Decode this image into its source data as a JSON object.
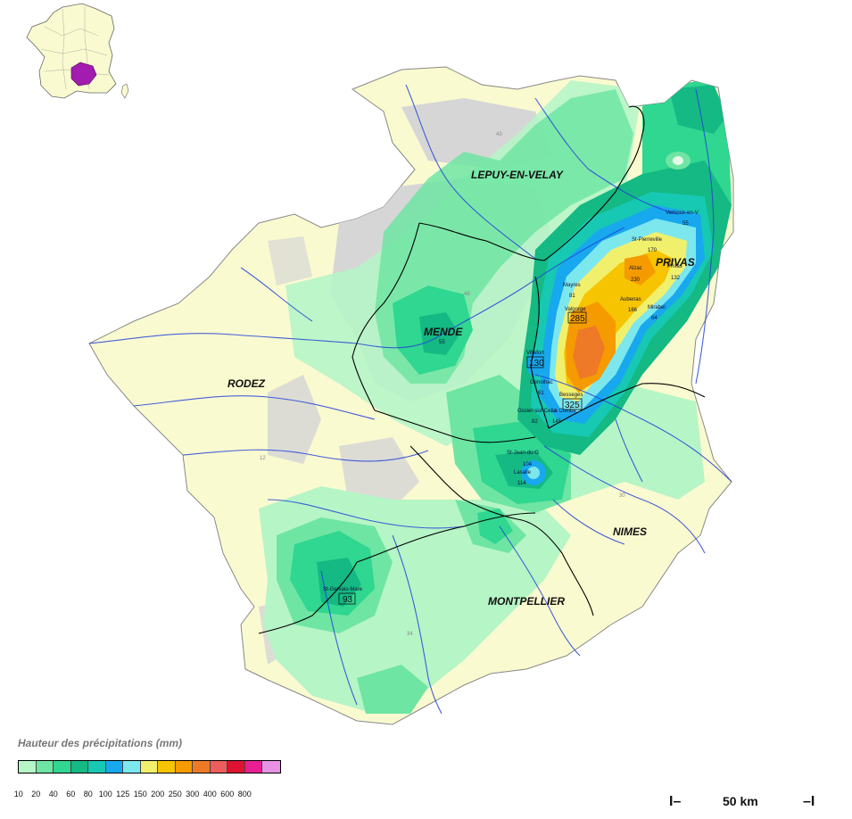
{
  "cities": [
    {
      "name": "LEPUY-EN-VELAY"
    },
    {
      "name": "PRIVAS"
    },
    {
      "name": "MENDE"
    },
    {
      "name": "RODEZ"
    },
    {
      "name": "NIMES"
    },
    {
      "name": "MONTPELLIER"
    }
  ],
  "stations": [
    {
      "name": "Vernoux-en-V",
      "value": "55"
    },
    {
      "name": "St-Pierreville",
      "value": "170"
    },
    {
      "name": "Alzac",
      "value": "230"
    },
    {
      "name": "Privas",
      "value": "132"
    },
    {
      "name": "Mayres",
      "value": "81"
    },
    {
      "name": "Aubenas",
      "value": "166"
    },
    {
      "name": "Mirabel",
      "value": "64"
    },
    {
      "name": "Valgorge",
      "value": "285"
    },
    {
      "name": "Villefort",
      "value": "130"
    },
    {
      "name": "Genolhac",
      "value": "61"
    },
    {
      "name": "Besseges",
      "value": "325"
    },
    {
      "name": "Ossier-sur-Ceze",
      "value": "82"
    },
    {
      "name": "La Combe",
      "value": "145"
    },
    {
      "name": "St-Jean-du-G",
      "value": "104"
    },
    {
      "name": "Lasalle",
      "value": "114"
    },
    {
      "name": "St-Gervais-Mare",
      "value": "93"
    },
    {
      "name": "Mende",
      "value": "55"
    }
  ],
  "faint_labels": [
    "43",
    "48",
    "12",
    "30",
    "34",
    "42"
  ],
  "legend": {
    "title": "Hauteur des précipitations (mm)",
    "ticks": [
      "10",
      "20",
      "40",
      "60",
      "80",
      "100",
      "125",
      "150",
      "200",
      "250",
      "300",
      "400",
      "600",
      "800"
    ],
    "colors": [
      "#b6f5c6",
      "#6fe5a3",
      "#2fd790",
      "#14b983",
      "#17c8b2",
      "#18a8ee",
      "#7de7ee",
      "#f1f06c",
      "#f6c400",
      "#f59b00",
      "#ee7a28",
      "#ee5c5c",
      "#de1232",
      "#e81f93",
      "#e890e4"
    ]
  },
  "scale": {
    "left": "I–",
    "label": "50 km",
    "right": "–I"
  },
  "palette": {
    "sea_background": "#ffffff",
    "dry": "#fafad0",
    "no_data": "#d6d6d6",
    "light_green": "#b6f5c6",
    "mid_green": "#6fe5a3",
    "green": "#2fd790",
    "dark_green": "#14b983",
    "river": "#2545d8",
    "border": "#000000"
  }
}
